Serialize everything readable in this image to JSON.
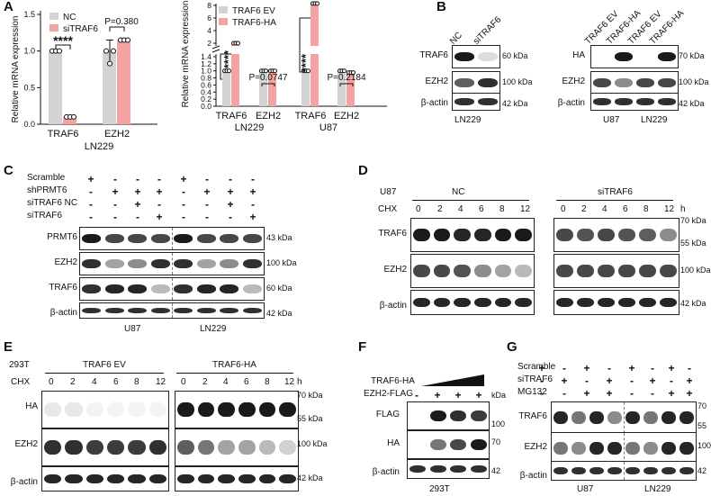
{
  "panels": {
    "A": "A",
    "B": "B",
    "C": "C",
    "D": "D",
    "E": "E",
    "F": "F",
    "G": "G"
  },
  "colors": {
    "nc": "#d3d3d3",
    "si": "#f4a3a3",
    "band": "#1a1a1a"
  },
  "chart_data": [
    {
      "type": "bar",
      "panel": "A-left",
      "categories": [
        "TRAF6",
        "EZH2"
      ],
      "series": [
        {
          "name": "NC",
          "values": [
            1.0,
            1.0
          ],
          "errors": [
            0.02,
            0.15
          ]
        },
        {
          "name": "siTRAF6",
          "values": [
            0.1,
            1.15
          ],
          "errors": [
            0.01,
            0.02
          ]
        }
      ],
      "ylabel": "Relative mRNA expression",
      "xlabel": "LN229",
      "ylim": [
        0,
        1.5
      ],
      "yticks": [
        "0.0",
        "0.5",
        "1.0",
        "1.5"
      ],
      "annotations": [
        "****",
        "P=0.380"
      ]
    },
    {
      "type": "bar",
      "panel": "A-right",
      "categories": [
        "TRAF6 LN229",
        "EZH2 LN229",
        "TRAF6 U87",
        "EZH2 U87"
      ],
      "series": [
        {
          "name": "TRAF6 EV",
          "values": [
            1.0,
            1.0,
            1.0,
            1.0
          ]
        },
        {
          "name": "TRAF6-HA",
          "values": [
            2.0,
            1.0,
            8.3,
            0.95
          ]
        }
      ],
      "ylabel": "Relative mRNA expression",
      "yticks": [
        "0.0",
        "0.2",
        "0.4",
        "0.6",
        "0.8",
        "1.0",
        "1.2",
        "1.4",
        "2",
        "4",
        "6",
        "8"
      ],
      "xticklabels": [
        "TRAF6",
        "EZH2",
        "TRAF6",
        "EZH2"
      ],
      "group_labels": [
        "LN229",
        "U87"
      ],
      "annotations": [
        "****",
        "P=0.0747",
        "****",
        "P=0.2184"
      ]
    }
  ],
  "panelB": {
    "left": {
      "cols": [
        "NC",
        "siTRAF6"
      ],
      "rows": [
        "TRAF6",
        "EZH2",
        "β-actin"
      ],
      "kda": [
        "60 kDa",
        "100 kDa",
        "42 kDa"
      ],
      "cell": "LN229"
    },
    "right": {
      "cols": [
        "TRAF6 EV",
        "TRAF6-HA",
        "TRAF6 EV",
        "TRAF6-HA"
      ],
      "rows": [
        "HA",
        "EZH2",
        "β-actin"
      ],
      "kda": [
        "70 kDa",
        "100 kDa",
        "42 kDa"
      ],
      "cells": [
        "U87",
        "LN229"
      ]
    }
  },
  "panelC": {
    "conds": [
      "Scramble",
      "shPRMT6",
      "siTRAF6 NC",
      "siTRAF6"
    ],
    "signs": [
      [
        "+",
        "-",
        "-",
        "-",
        "+",
        "-",
        "-",
        "-"
      ],
      [
        "-",
        "+",
        "+",
        "+",
        "-",
        "+",
        "+",
        "+"
      ],
      [
        "-",
        "-",
        "+",
        "-",
        "-",
        "-",
        "+",
        "-"
      ],
      [
        "-",
        "-",
        "-",
        "+",
        "-",
        "-",
        "-",
        "+"
      ]
    ],
    "rows": [
      "PRMT6",
      "EZH2",
      "TRAF6",
      "β-actin"
    ],
    "kda": [
      "43 kDa",
      "100 kDa",
      "60 kDa",
      "42 kDa"
    ],
    "cells": [
      "U87",
      "LN229"
    ]
  },
  "panelD": {
    "cell": "U87",
    "cond1": "NC",
    "cond2": "siTRAF6",
    "chx": "CHX",
    "unit": "h",
    "times": [
      "0",
      "2",
      "4",
      "6",
      "8",
      "12",
      "0",
      "2",
      "4",
      "6",
      "8",
      "12"
    ],
    "rows": [
      "TRAF6",
      "EZH2",
      "β-actin"
    ],
    "kda": [
      "70 kDa",
      "55 kDa",
      "100 kDa",
      "42 kDa"
    ]
  },
  "panelE": {
    "cell": "293T",
    "cond1": "TRAF6 EV",
    "cond2": "TRAF6-HA",
    "chx": "CHX",
    "unit": "h",
    "times": [
      "0",
      "2",
      "4",
      "6",
      "8",
      "12",
      "0",
      "2",
      "4",
      "6",
      "8",
      "12"
    ],
    "rows": [
      "HA",
      "EZH2",
      "β-actin"
    ],
    "kda": [
      "70 kDa",
      "55 kDa",
      "100 kDa",
      "42 kDa"
    ]
  },
  "panelF": {
    "conds": [
      "TRAF6-HA",
      "EZH2-FLAG"
    ],
    "signs": [
      "-",
      "+",
      "+",
      "+"
    ],
    "kda_head": "kDa",
    "rows": [
      "FLAG",
      "HA",
      "β-actin"
    ],
    "kda": [
      "100",
      "70",
      "42"
    ],
    "cell": "293T"
  },
  "panelG": {
    "conds": [
      "Scramble",
      "siTRAF6",
      "MG132"
    ],
    "signs": [
      [
        "+",
        "-",
        "+",
        "-",
        "+",
        "-",
        "+",
        "-"
      ],
      [
        "-",
        "+",
        "-",
        "+",
        "-",
        "+",
        "-",
        "+"
      ],
      [
        "-",
        "-",
        "+",
        "+",
        "-",
        "-",
        "+",
        "+"
      ]
    ],
    "rows": [
      "TRAF6",
      "EZH2",
      "β-actin"
    ],
    "kda": [
      "70",
      "55",
      "100",
      "42"
    ],
    "cells": [
      "U87",
      "LN229"
    ]
  }
}
